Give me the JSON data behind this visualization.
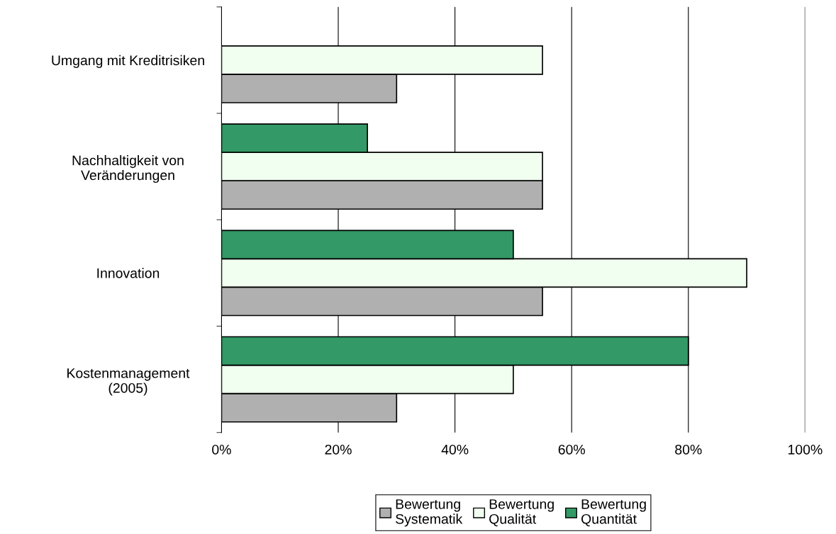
{
  "chart_data": {
    "type": "bar",
    "orientation": "horizontal",
    "categories": [
      "Umgang mit Kreditrisiken",
      "Nachhaltigkeit von\nVeränderungen",
      "Innovation",
      "Kostenmanagement\n(2005)"
    ],
    "series": [
      {
        "name": "Bewertung\nSystematik",
        "color": "#b0b0b0",
        "values": [
          30,
          55,
          55,
          30
        ]
      },
      {
        "name": "Bewertung\nQualität",
        "color": "#f0fff0",
        "values": [
          55,
          55,
          90,
          50
        ]
      },
      {
        "name": "Bewertung\nQuantität",
        "color": "#339966",
        "values": [
          null,
          25,
          50,
          80
        ]
      }
    ],
    "xlim": [
      0,
      100
    ],
    "xticks": [
      {
        "value": 0,
        "label": "0%"
      },
      {
        "value": 20,
        "label": "20%"
      },
      {
        "value": 40,
        "label": "40%"
      },
      {
        "value": 60,
        "label": "60%"
      },
      {
        "value": 80,
        "label": "80%"
      },
      {
        "value": 100,
        "label": "100%"
      }
    ],
    "grid": "x",
    "legend": "bottom"
  }
}
